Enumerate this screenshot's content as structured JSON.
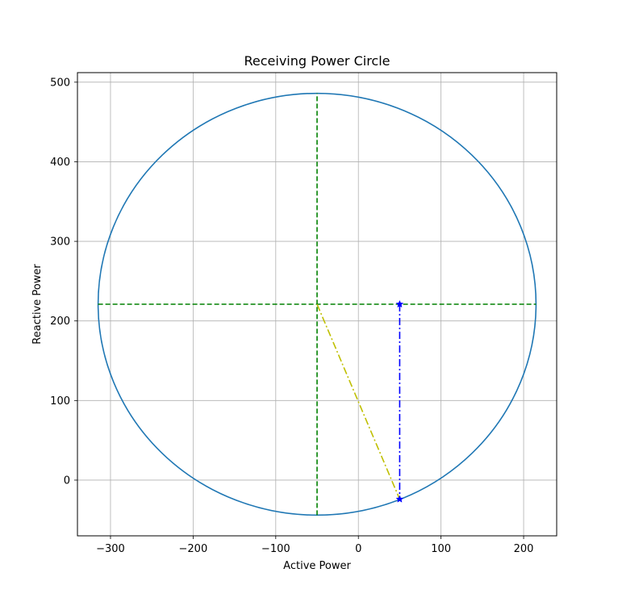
{
  "chart_data": {
    "type": "line",
    "title": "Receiving Power Circle",
    "xlabel": "Active Power",
    "ylabel": "Reactive Power",
    "xlim": [
      -340,
      240
    ],
    "ylim": [
      -70,
      512
    ],
    "xticks": [
      -300,
      -200,
      -100,
      0,
      100,
      200
    ],
    "yticks": [
      0,
      100,
      200,
      300,
      400,
      500
    ],
    "xtick_labels": [
      "−300",
      "−200",
      "−100",
      "0",
      "100",
      "200"
    ],
    "ytick_labels": [
      "0",
      "100",
      "200",
      "300",
      "400",
      "500"
    ],
    "grid": true,
    "circle": {
      "center": [
        -50,
        221
      ],
      "radius": 265,
      "color": "#1f77b4"
    },
    "series": [
      {
        "type": "hline",
        "y": 221,
        "x": [
          -315,
          215
        ],
        "color": "#008000",
        "style": "dashed"
      },
      {
        "type": "vline",
        "x": -50,
        "y": [
          -44,
          486
        ],
        "color": "#008000",
        "style": "dashed"
      },
      {
        "type": "segment",
        "x": [
          -50,
          50
        ],
        "y": [
          221,
          -24
        ],
        "color": "#bfbf00",
        "style": "dashdot"
      },
      {
        "type": "segment",
        "x": [
          50,
          50
        ],
        "y": [
          221,
          -24
        ],
        "color": "#0000ff",
        "style": "dashdot",
        "marker": "star"
      }
    ]
  }
}
